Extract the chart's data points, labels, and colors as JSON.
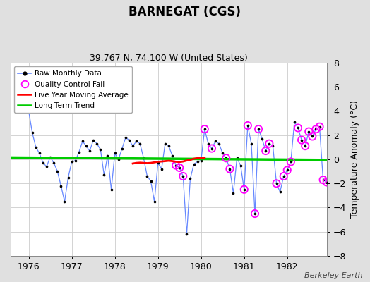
{
  "title": "BARNEGAT (CGS)",
  "subtitle": "39.767 N, 74.100 W (United States)",
  "ylabel": "Temperature Anomaly (°C)",
  "watermark": "Berkeley Earth",
  "ylim": [
    -8,
    8
  ],
  "xlim": [
    1975.58,
    1982.92
  ],
  "xticks": [
    1976,
    1977,
    1978,
    1979,
    1980,
    1981,
    1982
  ],
  "yticks": [
    -8,
    -6,
    -4,
    -2,
    0,
    2,
    4,
    6,
    8
  ],
  "bg_color": "#e0e0e0",
  "plot_bg_color": "#ffffff",
  "raw_color": "#6688ff",
  "raw_dot_color": "#000000",
  "qc_color": "#ff00ff",
  "ma_color": "#ff0000",
  "trend_color": "#00cc00",
  "raw_monthly_x": [
    1976.0,
    1976.083,
    1976.167,
    1976.25,
    1976.333,
    1976.417,
    1976.5,
    1976.583,
    1976.667,
    1976.75,
    1976.833,
    1976.917,
    1977.0,
    1977.083,
    1977.167,
    1977.25,
    1977.333,
    1977.417,
    1977.5,
    1977.583,
    1977.667,
    1977.75,
    1977.833,
    1977.917,
    1978.0,
    1978.083,
    1978.167,
    1978.25,
    1978.333,
    1978.417,
    1978.5,
    1978.583,
    1978.667,
    1978.75,
    1978.833,
    1978.917,
    1979.0,
    1979.083,
    1979.167,
    1979.25,
    1979.333,
    1979.417,
    1979.5,
    1979.583,
    1979.667,
    1979.75,
    1979.833,
    1979.917,
    1980.0,
    1980.083,
    1980.167,
    1980.25,
    1980.333,
    1980.417,
    1980.5,
    1980.583,
    1980.667,
    1980.75,
    1980.833,
    1980.917,
    1981.0,
    1981.083,
    1981.167,
    1981.25,
    1981.333,
    1981.417,
    1981.5,
    1981.583,
    1981.667,
    1981.75,
    1981.833,
    1981.917,
    1982.0,
    1982.083,
    1982.167,
    1982.25,
    1982.333,
    1982.417,
    1982.5,
    1982.583,
    1982.667,
    1982.75,
    1982.833,
    1982.917
  ],
  "raw_monthly_y": [
    4.0,
    2.2,
    1.0,
    0.5,
    -0.3,
    -0.6,
    0.2,
    -0.3,
    -1.0,
    -2.2,
    -3.5,
    -1.5,
    -0.2,
    -0.1,
    0.6,
    1.5,
    1.1,
    0.7,
    1.6,
    1.3,
    0.8,
    -1.3,
    0.3,
    -2.5,
    0.5,
    0.0,
    0.9,
    1.8,
    1.6,
    1.1,
    1.5,
    1.3,
    0.1,
    -1.4,
    -1.8,
    -3.5,
    -0.3,
    -0.8,
    1.3,
    1.1,
    0.3,
    -0.5,
    -0.7,
    -1.4,
    -6.2,
    -1.6,
    -0.4,
    -0.2,
    -0.1,
    2.5,
    1.3,
    0.9,
    1.5,
    1.3,
    0.5,
    0.1,
    -0.8,
    -2.8,
    0.1,
    -0.5,
    -2.5,
    2.8,
    1.3,
    -4.5,
    2.5,
    1.7,
    0.7,
    1.3,
    1.1,
    -2.0,
    -2.7,
    -1.4,
    -0.9,
    -0.2,
    3.1,
    2.6,
    1.6,
    1.1,
    2.3,
    1.9,
    2.5,
    2.7,
    -1.7,
    -1.9
  ],
  "qc_fail_x": [
    1979.417,
    1979.5,
    1979.583,
    1980.083,
    1980.25,
    1980.583,
    1980.667,
    1981.0,
    1981.083,
    1981.25,
    1981.333,
    1981.5,
    1981.583,
    1981.75,
    1981.917,
    1982.0,
    1982.083,
    1982.25,
    1982.333,
    1982.417,
    1982.5,
    1982.583,
    1982.667,
    1982.75,
    1982.833,
    1982.917
  ],
  "qc_fail_y": [
    -0.5,
    -0.7,
    -1.4,
    2.5,
    0.9,
    0.1,
    -0.8,
    -2.5,
    2.8,
    -4.5,
    2.5,
    0.7,
    1.3,
    -2.0,
    -1.4,
    -0.9,
    -0.2,
    2.6,
    1.6,
    1.1,
    2.3,
    1.9,
    2.5,
    2.7,
    -1.7,
    -1.9
  ],
  "moving_avg_x": [
    1978.417,
    1978.5,
    1978.583,
    1978.667,
    1978.75,
    1978.833,
    1978.917,
    1979.0,
    1979.083,
    1979.167,
    1979.25,
    1979.333,
    1979.417,
    1979.5,
    1979.583,
    1979.667,
    1979.75,
    1979.833,
    1979.917,
    1980.0,
    1980.083
  ],
  "moving_avg_y": [
    -0.35,
    -0.3,
    -0.28,
    -0.3,
    -0.32,
    -0.3,
    -0.25,
    -0.2,
    -0.18,
    -0.15,
    -0.12,
    -0.15,
    -0.2,
    -0.22,
    -0.18,
    -0.1,
    -0.05,
    0.05,
    0.1,
    0.12,
    0.1
  ],
  "trend_x": [
    1975.58,
    1982.92
  ],
  "trend_y": [
    0.15,
    -0.05
  ],
  "title_fontsize": 12,
  "subtitle_fontsize": 9,
  "tick_fontsize": 9,
  "legend_fontsize": 7.5,
  "watermark_fontsize": 8
}
